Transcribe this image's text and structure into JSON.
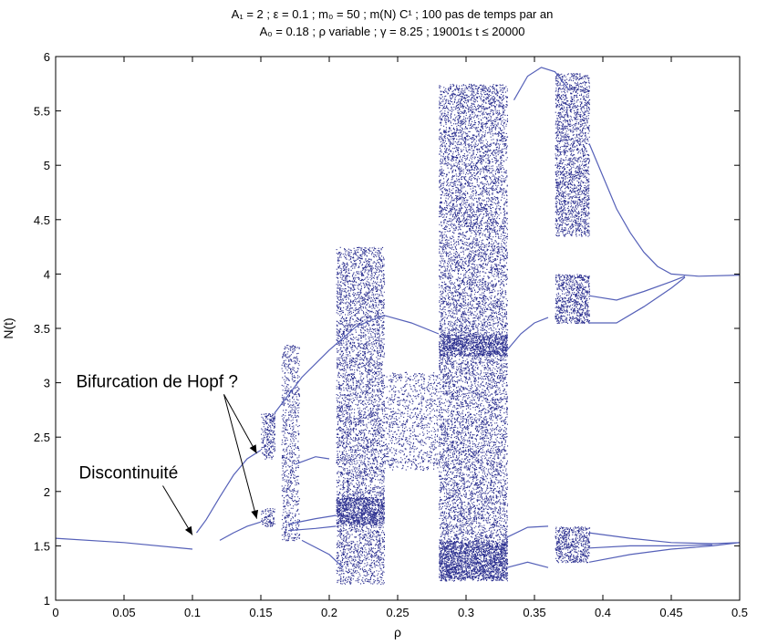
{
  "chart_data": {
    "type": "scatter",
    "title_line1": "A₁ = 2 ; ε = 0.1 ; m₀ = 50 ; m(N) C¹ ; 100 pas de temps par an",
    "title_line2": "A₀ = 0.18 ; ρ variable ; γ = 8.25 ; 19001≤ t ≤ 20000",
    "xlabel": "ρ",
    "ylabel": "N(t)",
    "xlim": [
      0,
      0.5
    ],
    "ylim": [
      1,
      6
    ],
    "xticks": [
      0,
      0.05,
      0.1,
      0.15,
      0.2,
      0.25,
      0.3,
      0.35,
      0.4,
      0.45,
      0.5
    ],
    "xtick_labels": [
      "0",
      "0.05",
      "0.1",
      "0.15",
      "0.2",
      "0.25",
      "0.3",
      "0.35",
      "0.4",
      "0.45",
      "0.5"
    ],
    "yticks": [
      1,
      1.5,
      2,
      2.5,
      3,
      3.5,
      4,
      4.5,
      5,
      5.5,
      6
    ],
    "ytick_labels": [
      "1",
      "1.5",
      "2",
      "2.5",
      "3",
      "3.5",
      "4",
      "4.5",
      "5",
      "5.5",
      "6"
    ],
    "grid": false,
    "point_color": "#2b2f8f",
    "curve_color": "#5560b8",
    "branches": [
      {
        "name": "fixed-point",
        "points": [
          [
            0,
            1.57
          ],
          [
            0.05,
            1.53
          ],
          [
            0.1,
            1.47
          ]
        ]
      },
      {
        "name": "lower-cycle-a",
        "points": [
          [
            0.103,
            1.62
          ],
          [
            0.11,
            1.74
          ],
          [
            0.12,
            1.95
          ],
          [
            0.13,
            2.15
          ],
          [
            0.14,
            2.3
          ],
          [
            0.15,
            2.38
          ]
        ]
      },
      {
        "name": "lower-cycle-b",
        "points": [
          [
            0.12,
            1.55
          ],
          [
            0.13,
            1.62
          ],
          [
            0.14,
            1.68
          ],
          [
            0.15,
            1.72
          ]
        ]
      },
      {
        "name": "upper-ghost",
        "points": [
          [
            0.16,
            2.72
          ],
          [
            0.18,
            3.05
          ],
          [
            0.2,
            3.3
          ],
          [
            0.22,
            3.52
          ],
          [
            0.24,
            3.62
          ],
          [
            0.26,
            3.55
          ],
          [
            0.28,
            3.45
          ]
        ]
      },
      {
        "name": "mid-curve",
        "points": [
          [
            0.175,
            2.25
          ],
          [
            0.19,
            2.32
          ],
          [
            0.2,
            2.3
          ]
        ]
      },
      {
        "name": "mid-lines-1",
        "points": [
          [
            0.17,
            1.7
          ],
          [
            0.19,
            1.75
          ],
          [
            0.205,
            1.78
          ]
        ]
      },
      {
        "name": "mid-lines-2",
        "points": [
          [
            0.17,
            1.64
          ],
          [
            0.19,
            1.66
          ],
          [
            0.205,
            1.68
          ]
        ]
      },
      {
        "name": "low-return",
        "points": [
          [
            0.18,
            1.55
          ],
          [
            0.2,
            1.42
          ],
          [
            0.21,
            1.3
          ]
        ]
      },
      {
        "name": "top-arc",
        "points": [
          [
            0.335,
            5.6
          ],
          [
            0.345,
            5.82
          ],
          [
            0.355,
            5.9
          ],
          [
            0.365,
            5.86
          ],
          [
            0.375,
            5.7
          ]
        ]
      },
      {
        "name": "upper-tail",
        "points": [
          [
            0.39,
            5.2
          ],
          [
            0.4,
            4.9
          ],
          [
            0.41,
            4.6
          ],
          [
            0.42,
            4.38
          ],
          [
            0.43,
            4.2
          ],
          [
            0.44,
            4.07
          ],
          [
            0.45,
            4.0
          ],
          [
            0.47,
            3.98
          ],
          [
            0.5,
            3.99
          ]
        ]
      },
      {
        "name": "mid-tail-a",
        "points": [
          [
            0.39,
            3.8
          ],
          [
            0.41,
            3.76
          ],
          [
            0.43,
            3.84
          ],
          [
            0.45,
            3.93
          ],
          [
            0.46,
            3.98
          ]
        ]
      },
      {
        "name": "mid-tail-b",
        "points": [
          [
            0.39,
            3.55
          ],
          [
            0.41,
            3.55
          ],
          [
            0.43,
            3.7
          ],
          [
            0.45,
            3.87
          ],
          [
            0.46,
            3.97
          ]
        ]
      },
      {
        "name": "mid-entry",
        "points": [
          [
            0.33,
            3.3
          ],
          [
            0.34,
            3.45
          ],
          [
            0.35,
            3.55
          ],
          [
            0.36,
            3.6
          ]
        ]
      },
      {
        "name": "low-tail-a",
        "points": [
          [
            0.39,
            1.62
          ],
          [
            0.42,
            1.57
          ],
          [
            0.45,
            1.53
          ],
          [
            0.48,
            1.52
          ],
          [
            0.5,
            1.53
          ]
        ]
      },
      {
        "name": "low-tail-b",
        "points": [
          [
            0.39,
            1.35
          ],
          [
            0.42,
            1.42
          ],
          [
            0.45,
            1.47
          ],
          [
            0.48,
            1.5
          ],
          [
            0.5,
            1.53
          ]
        ]
      },
      {
        "name": "low-tail-c",
        "points": [
          [
            0.39,
            1.48
          ],
          [
            0.42,
            1.5
          ],
          [
            0.45,
            1.5
          ],
          [
            0.48,
            1.51
          ]
        ]
      },
      {
        "name": "low-entry-a",
        "points": [
          [
            0.33,
            1.58
          ],
          [
            0.345,
            1.67
          ],
          [
            0.36,
            1.68
          ]
        ]
      },
      {
        "name": "low-entry-b",
        "points": [
          [
            0.33,
            1.3
          ],
          [
            0.345,
            1.35
          ],
          [
            0.36,
            1.3
          ]
        ]
      }
    ],
    "bands": [
      {
        "x": [
          0.15,
          0.16
        ],
        "y": [
          2.3,
          2.72
        ],
        "density": 0.6
      },
      {
        "x": [
          0.15,
          0.16
        ],
        "y": [
          1.68,
          1.85
        ],
        "density": 0.6
      },
      {
        "x": [
          0.165,
          0.178
        ],
        "y": [
          1.55,
          3.35
        ],
        "density": 0.35
      },
      {
        "x": [
          0.205,
          0.24
        ],
        "y": [
          1.15,
          4.25
        ],
        "density": 0.45
      },
      {
        "x": [
          0.205,
          0.24
        ],
        "y": [
          1.7,
          1.95
        ],
        "density": 0.9
      },
      {
        "x": [
          0.24,
          0.28
        ],
        "y": [
          2.2,
          3.1
        ],
        "density": 0.25
      },
      {
        "x": [
          0.28,
          0.33
        ],
        "y": [
          1.18,
          5.75
        ],
        "density": 0.45
      },
      {
        "x": [
          0.28,
          0.33
        ],
        "y": [
          1.2,
          1.55
        ],
        "density": 0.8
      },
      {
        "x": [
          0.28,
          0.33
        ],
        "y": [
          3.25,
          3.45
        ],
        "density": 0.8
      },
      {
        "x": [
          0.365,
          0.39
        ],
        "y": [
          4.35,
          5.85
        ],
        "density": 0.55
      },
      {
        "x": [
          0.365,
          0.39
        ],
        "y": [
          3.55,
          4.0
        ],
        "density": 0.7
      },
      {
        "x": [
          0.365,
          0.39
        ],
        "y": [
          1.35,
          1.68
        ],
        "density": 0.7
      }
    ],
    "annotations": [
      {
        "text": "Bifurcation de Hopf ?",
        "pos": [
          0.015,
          2.96
        ],
        "arrows_to": [
          [
            0.147,
            2.35
          ],
          [
            0.147,
            1.75
          ]
        ]
      },
      {
        "text": "Discontinuité",
        "pos": [
          0.017,
          2.12
        ],
        "arrows_to": [
          [
            0.1,
            1.6
          ]
        ]
      }
    ]
  }
}
